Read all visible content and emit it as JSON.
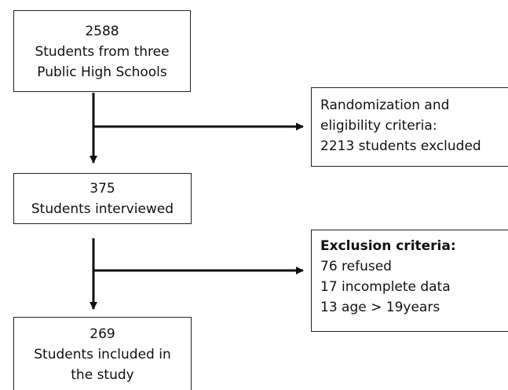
{
  "box_top": {
    "count": "2588",
    "line1": "Students from three",
    "line2": "Public High Schools"
  },
  "box_randomization": {
    "line1": "Randomization and",
    "line2": "eligibility criteria:",
    "line3": "2213 students excluded"
  },
  "box_interviewed": {
    "count": "375",
    "line1": "Students interviewed"
  },
  "box_exclusion": {
    "title": "Exclusion criteria:",
    "item1": "76 refused",
    "item2": "17 incomplete data",
    "item3": "13 age > 19years"
  },
  "box_included": {
    "count": "269",
    "line1": "Students included in",
    "line2": "the study"
  },
  "colors": {
    "line": "#111111",
    "border": "#222222",
    "background": "#ffffff"
  }
}
